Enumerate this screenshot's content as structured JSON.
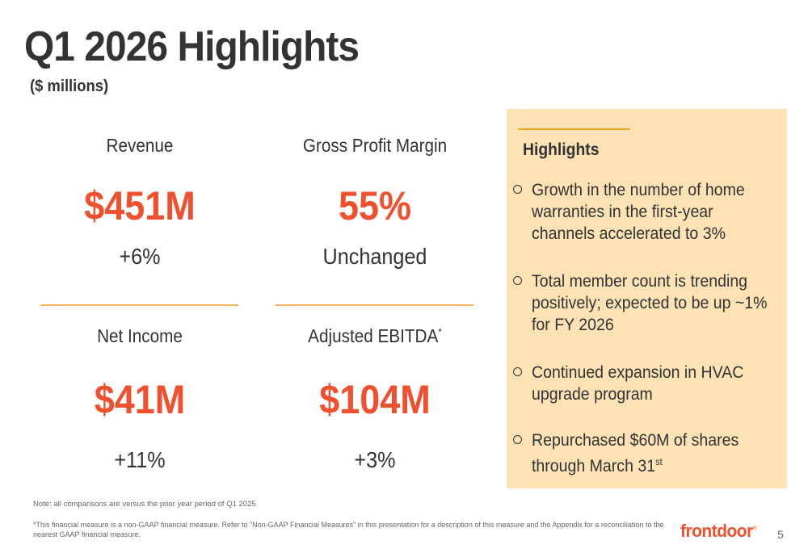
{
  "slide": {
    "title": "Q1 2026 Highlights",
    "subtitle": "($ millions)",
    "page_number": "5"
  },
  "metrics": [
    {
      "label": "Revenue",
      "value": "$451M",
      "change": "+6%"
    },
    {
      "label": "Gross Profit Margin",
      "value": "55%",
      "change": "Unchanged"
    },
    {
      "label": "Net Income",
      "value": "$41M",
      "change": "+11%"
    },
    {
      "label": "Adjusted EBITDA",
      "label_mark": "*",
      "value": "$104M",
      "change": "+3%"
    }
  ],
  "highlights": {
    "title": "Highlights",
    "items": [
      {
        "text": "Growth in the number of home warranties in the first-year channels accelerated to 3%"
      },
      {
        "text": "Total member count is trending positively; expected to be up ~1% for FY 2026"
      },
      {
        "text": "Continued expansion in HVAC upgrade program"
      },
      {
        "text": "Repurchased $60M of shares through March 31",
        "superscript": "st"
      }
    ]
  },
  "footer": {
    "note": "Note: all comparisons are versus the prior year period of Q1 2025",
    "footnote": "*This financial measure is a non-GAAP financial measure. Refer to \"Non-GAAP Financial Measures\" in this presentation for a description of this measure and the Appendix for a reconciliation to the nearest GAAP financial measure.",
    "logo_text": "frontdoor",
    "logo_mark": "®"
  },
  "colors": {
    "accent": "#f0502d",
    "panel_bg": "#fce2b5",
    "divider": "#f5b25a"
  }
}
